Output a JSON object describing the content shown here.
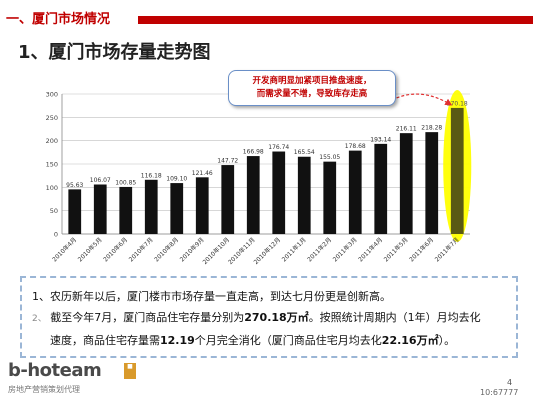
{
  "header": {
    "section": "一、厦门市场情况"
  },
  "page_title": "1、厦门市场存量走势图",
  "callout": {
    "line1": "开发商明显加紧项目推盘速度，",
    "line2": "而需求量不增，导致库存走高"
  },
  "colors": {
    "brand": "#c00000",
    "bar": "#111111",
    "highlight": "#ffff00",
    "arrow": "#e03030"
  },
  "chart_data": {
    "type": "bar",
    "title": "",
    "xlabel": "",
    "ylabel": "",
    "ylim": [
      0,
      300
    ],
    "yticks": [
      "0",
      "50",
      "100",
      "150",
      "200",
      "250",
      "300"
    ],
    "grid": true,
    "categories": [
      "2010年4月",
      "2010年5月",
      "2010年6月",
      "2010年7月",
      "2010年8月",
      "2010年9月",
      "2010年10月",
      "2010年11月",
      "2010年12月",
      "2011年1月",
      "2011年2月",
      "2011年3月",
      "2011年4月",
      "2011年5月",
      "2011年6月",
      "2011年7月"
    ],
    "values": [
      95.63,
      106.07,
      100.85,
      116.18,
      109.1,
      121.46,
      147.72,
      166.98,
      176.74,
      165.54,
      155.05,
      178.68,
      193.14,
      216.11,
      218.28,
      270.18
    ],
    "value_labels": [
      "95.63",
      "106.07",
      "100.85",
      "116.18",
      "109.10",
      "121.46",
      "147.72",
      "166.98",
      "176.74",
      "165.54",
      "155.05",
      "178.68",
      "193.14",
      "216.11",
      "218.28",
      "270.18"
    ],
    "highlight_index": 15
  },
  "notes": {
    "n1_num": "1、",
    "n1_text": "农历新年以后，厦门楼市市场存量一直走高，到达七月份更是创新高。",
    "n2_num": "2、",
    "n2_a": "截至今年7月，厦门商品住宅存量分别为",
    "n2_v1": "270.18万㎡",
    "n2_b": "。按照统计周期内（1年）月均去化",
    "n2_c": "速度，商品住宅存量需",
    "n2_v2": "12.19",
    "n2_d": "个月完全消化（厦门商品住宅月均去化",
    "n2_v3": "22.16万㎡",
    "n2_e": "）。"
  },
  "logo": {
    "name": "b-hoteam",
    "sub": "房地产营销策划代理"
  },
  "page_number": "4",
  "footer_code": "10:67777"
}
